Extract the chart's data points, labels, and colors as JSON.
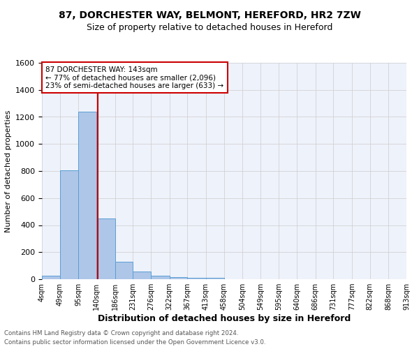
{
  "title": "87, DORCHESTER WAY, BELMONT, HEREFORD, HR2 7ZW",
  "subtitle": "Size of property relative to detached houses in Hereford",
  "xlabel": "Distribution of detached houses by size in Hereford",
  "ylabel": "Number of detached properties",
  "footer_line1": "Contains HM Land Registry data © Crown copyright and database right 2024.",
  "footer_line2": "Contains public sector information licensed under the Open Government Licence v3.0.",
  "annotation_line1": "87 DORCHESTER WAY: 143sqm",
  "annotation_line2": "← 77% of detached houses are smaller (2,096)",
  "annotation_line3": "23% of semi-detached houses are larger (633) →",
  "bar_edges": [
    4,
    49,
    95,
    140,
    186,
    231,
    276,
    322,
    367,
    413,
    458,
    504,
    549,
    595,
    640,
    686,
    731,
    777,
    822,
    868,
    913
  ],
  "bar_values": [
    25,
    805,
    1240,
    450,
    130,
    58,
    27,
    15,
    10,
    8,
    0,
    0,
    0,
    0,
    0,
    0,
    0,
    0,
    0,
    0
  ],
  "property_line_x": 143,
  "ylim": [
    0,
    1600
  ],
  "bar_color": "#aec6e8",
  "bar_edge_color": "#5a9fd4",
  "line_color": "#cc0000",
  "grid_color": "#cccccc",
  "background_color": "#eef2fb",
  "annotation_box_color": "#cc0000",
  "tick_labels": [
    "4sqm",
    "49sqm",
    "95sqm",
    "140sqm",
    "186sqm",
    "231sqm",
    "276sqm",
    "322sqm",
    "367sqm",
    "413sqm",
    "458sqm",
    "504sqm",
    "549sqm",
    "595sqm",
    "640sqm",
    "686sqm",
    "731sqm",
    "777sqm",
    "822sqm",
    "868sqm",
    "913sqm"
  ],
  "yticks": [
    0,
    200,
    400,
    600,
    800,
    1000,
    1200,
    1400,
    1600
  ]
}
